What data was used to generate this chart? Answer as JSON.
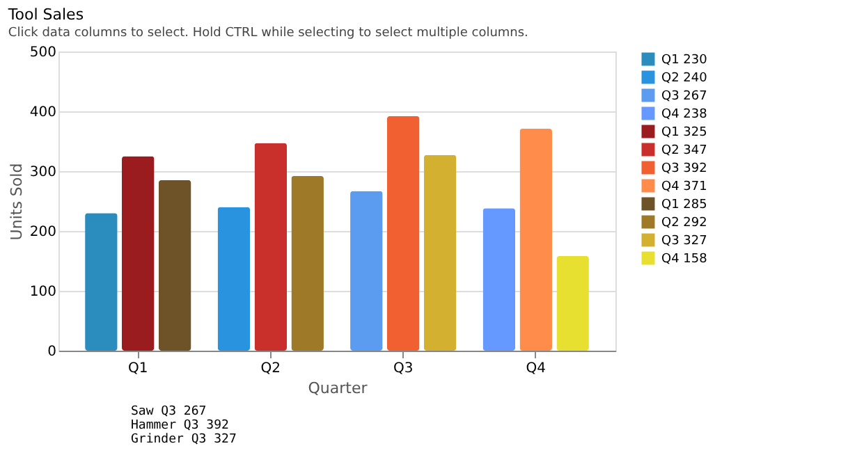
{
  "chart_data": {
    "type": "bar",
    "title": "Tool Sales",
    "subtitle": "Click data columns to select. Hold CTRL while selecting to select multiple columns.",
    "xlabel": "Quarter",
    "ylabel": "Units Sold",
    "categories": [
      "Q1",
      "Q2",
      "Q3",
      "Q4"
    ],
    "series": [
      {
        "name": "Q1 230",
        "color": "#2b8cbe",
        "values": [
          230,
          null,
          null,
          null
        ]
      },
      {
        "name": "Q2 240",
        "color": "#2a93e0",
        "values": [
          null,
          240,
          null,
          null
        ]
      },
      {
        "name": "Q3 267",
        "color": "#5b9bf0",
        "values": [
          null,
          null,
          267,
          null
        ]
      },
      {
        "name": "Q4 238",
        "color": "#6699ff",
        "values": [
          null,
          null,
          null,
          238
        ]
      },
      {
        "name": "Q1 325",
        "color": "#9b1c1f",
        "values": [
          325,
          null,
          null,
          null
        ]
      },
      {
        "name": "Q2 347",
        "color": "#c9302c",
        "values": [
          null,
          347,
          null,
          null
        ]
      },
      {
        "name": "Q3 392",
        "color": "#f06030",
        "values": [
          null,
          null,
          392,
          null
        ]
      },
      {
        "name": "Q4 371",
        "color": "#ff8c4a",
        "values": [
          null,
          null,
          null,
          371
        ]
      },
      {
        "name": "Q1 285",
        "color": "#6e5228",
        "values": [
          285,
          null,
          null,
          null
        ]
      },
      {
        "name": "Q2 292",
        "color": "#9e7a28",
        "values": [
          null,
          292,
          null,
          null
        ]
      },
      {
        "name": "Q3 327",
        "color": "#d4b030",
        "values": [
          null,
          null,
          327,
          null
        ]
      },
      {
        "name": "Q4 158",
        "color": "#e8e030",
        "values": [
          null,
          null,
          null,
          158
        ]
      }
    ],
    "ylim": [
      0,
      500
    ],
    "yticks": [
      0,
      100,
      200,
      300,
      400,
      500
    ],
    "grid": "y",
    "legend": "right",
    "annotations": [
      "Saw Q3 267",
      "Hammer Q3 392",
      "Grinder Q3 327"
    ]
  }
}
